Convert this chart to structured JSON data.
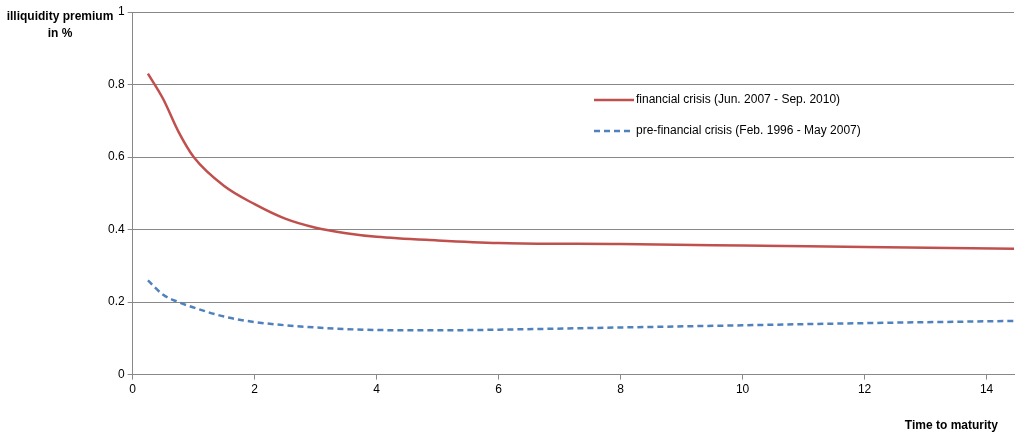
{
  "chart_data": {
    "type": "line",
    "xlabel": "Time to maturity",
    "ylabel": "illiquidity premium in %",
    "xlim": [
      0,
      14.45
    ],
    "ylim": [
      0,
      1
    ],
    "xticks": [
      0,
      2,
      4,
      6,
      8,
      10,
      12,
      14
    ],
    "yticks": [
      0,
      0.2,
      0.4,
      0.6,
      0.8,
      1
    ],
    "grid": "y",
    "legend": "top right",
    "marker": "none",
    "series": [
      {
        "name": "financial crisis (Jun. 2007 - Sep. 2010)",
        "color": "#c0504d",
        "line_style": "solid",
        "x": [
          0.25,
          0.5,
          0.75,
          1,
          1.5,
          2,
          2.5,
          3,
          3.5,
          4,
          5,
          6,
          8,
          10,
          12,
          14.45
        ],
        "values": [
          0.83,
          0.76,
          0.67,
          0.6,
          0.52,
          0.47,
          0.43,
          0.405,
          0.39,
          0.38,
          0.37,
          0.363,
          0.36,
          0.356,
          0.352,
          0.347
        ]
      },
      {
        "name": "pre-financial crisis (Feb. 1996 - May 2007)",
        "color": "#4f81bd",
        "line_style": "dashed",
        "x": [
          0.25,
          0.5,
          0.75,
          1,
          1.5,
          2,
          3,
          4,
          5,
          6,
          8,
          10,
          12,
          14.45
        ],
        "values": [
          0.26,
          0.22,
          0.2,
          0.185,
          0.16,
          0.145,
          0.13,
          0.123,
          0.122,
          0.124,
          0.13,
          0.136,
          0.142,
          0.148
        ]
      }
    ]
  }
}
